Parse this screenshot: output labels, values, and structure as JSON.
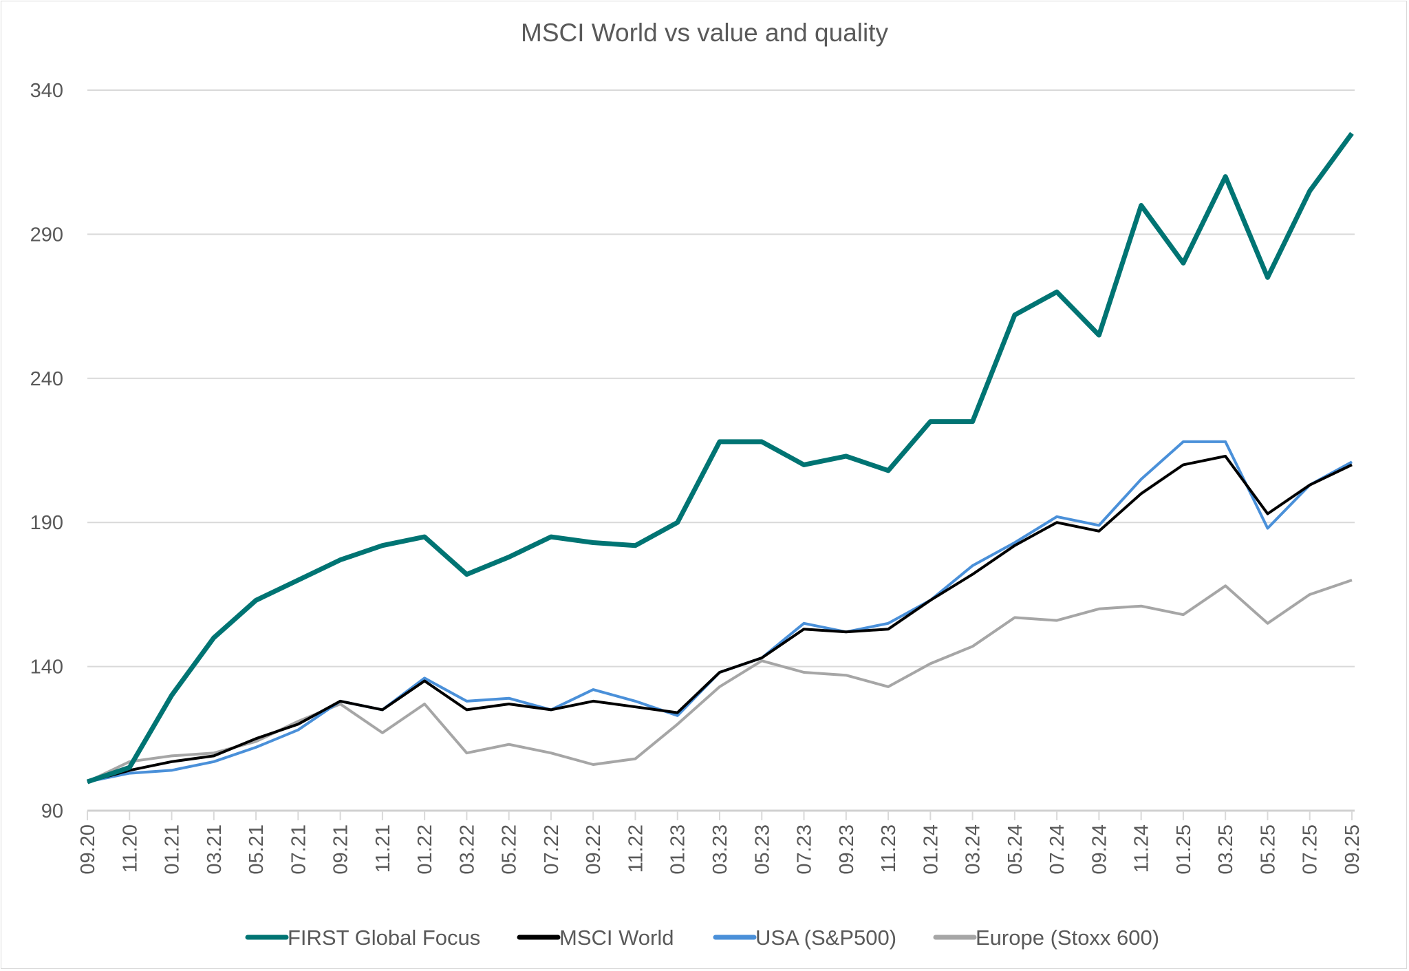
{
  "chart_data": {
    "type": "line",
    "title": "MSCI World vs value and quality",
    "xlabel": "",
    "ylabel": "",
    "ylim": [
      90,
      340
    ],
    "yticks": [
      90,
      140,
      190,
      240,
      290,
      340
    ],
    "grid": true,
    "legend_position": "bottom",
    "categories": [
      "09.20",
      "11.20",
      "01.21",
      "03.21",
      "05.21",
      "07.21",
      "09.21",
      "11.21",
      "01.22",
      "03.22",
      "05.22",
      "07.22",
      "09.22",
      "11.22",
      "01.23",
      "03.23",
      "05.23",
      "07.23",
      "09.23",
      "11.23",
      "01.24",
      "03.24",
      "05.24",
      "07.24",
      "09.24",
      "11.24",
      "01.25",
      "03.25",
      "05.25",
      "07.25",
      "09.25"
    ],
    "series": [
      {
        "name": "Europe (Stoxx 600)",
        "color": "#a6a6a6",
        "values": [
          100,
          107,
          109,
          110,
          114,
          121,
          127,
          117,
          127,
          110,
          113,
          110,
          106,
          108,
          120,
          133,
          142,
          138,
          137,
          133,
          141,
          147,
          157,
          156,
          160,
          161,
          158,
          168,
          155,
          165,
          170
        ]
      },
      {
        "name": "USA (S&P500)",
        "color": "#4a90d9",
        "values": [
          100,
          103,
          104,
          107,
          112,
          118,
          128,
          125,
          136,
          128,
          129,
          125,
          132,
          128,
          123,
          138,
          143,
          155,
          152,
          155,
          163,
          175,
          183,
          192,
          189,
          205,
          218,
          218,
          188,
          203,
          211
        ]
      },
      {
        "name": "MSCI World",
        "color": "#000000",
        "values": [
          100,
          104,
          107,
          109,
          115,
          120,
          128,
          125,
          135,
          125,
          127,
          125,
          128,
          126,
          124,
          138,
          143,
          153,
          152,
          153,
          163,
          172,
          182,
          190,
          187,
          200,
          210,
          213,
          193,
          203,
          210
        ]
      },
      {
        "name": "FIRST Global Focus",
        "color": "#007473",
        "values": [
          100,
          105,
          130,
          150,
          163,
          170,
          177,
          182,
          185,
          172,
          178,
          185,
          183,
          182,
          190,
          218,
          218,
          210,
          213,
          208,
          225,
          225,
          262,
          270,
          255,
          300,
          280,
          310,
          275,
          305,
          325
        ]
      }
    ],
    "legend_order": [
      "FIRST Global Focus",
      "MSCI World",
      "USA (S&P500)",
      "Europe (Stoxx 600)"
    ]
  }
}
